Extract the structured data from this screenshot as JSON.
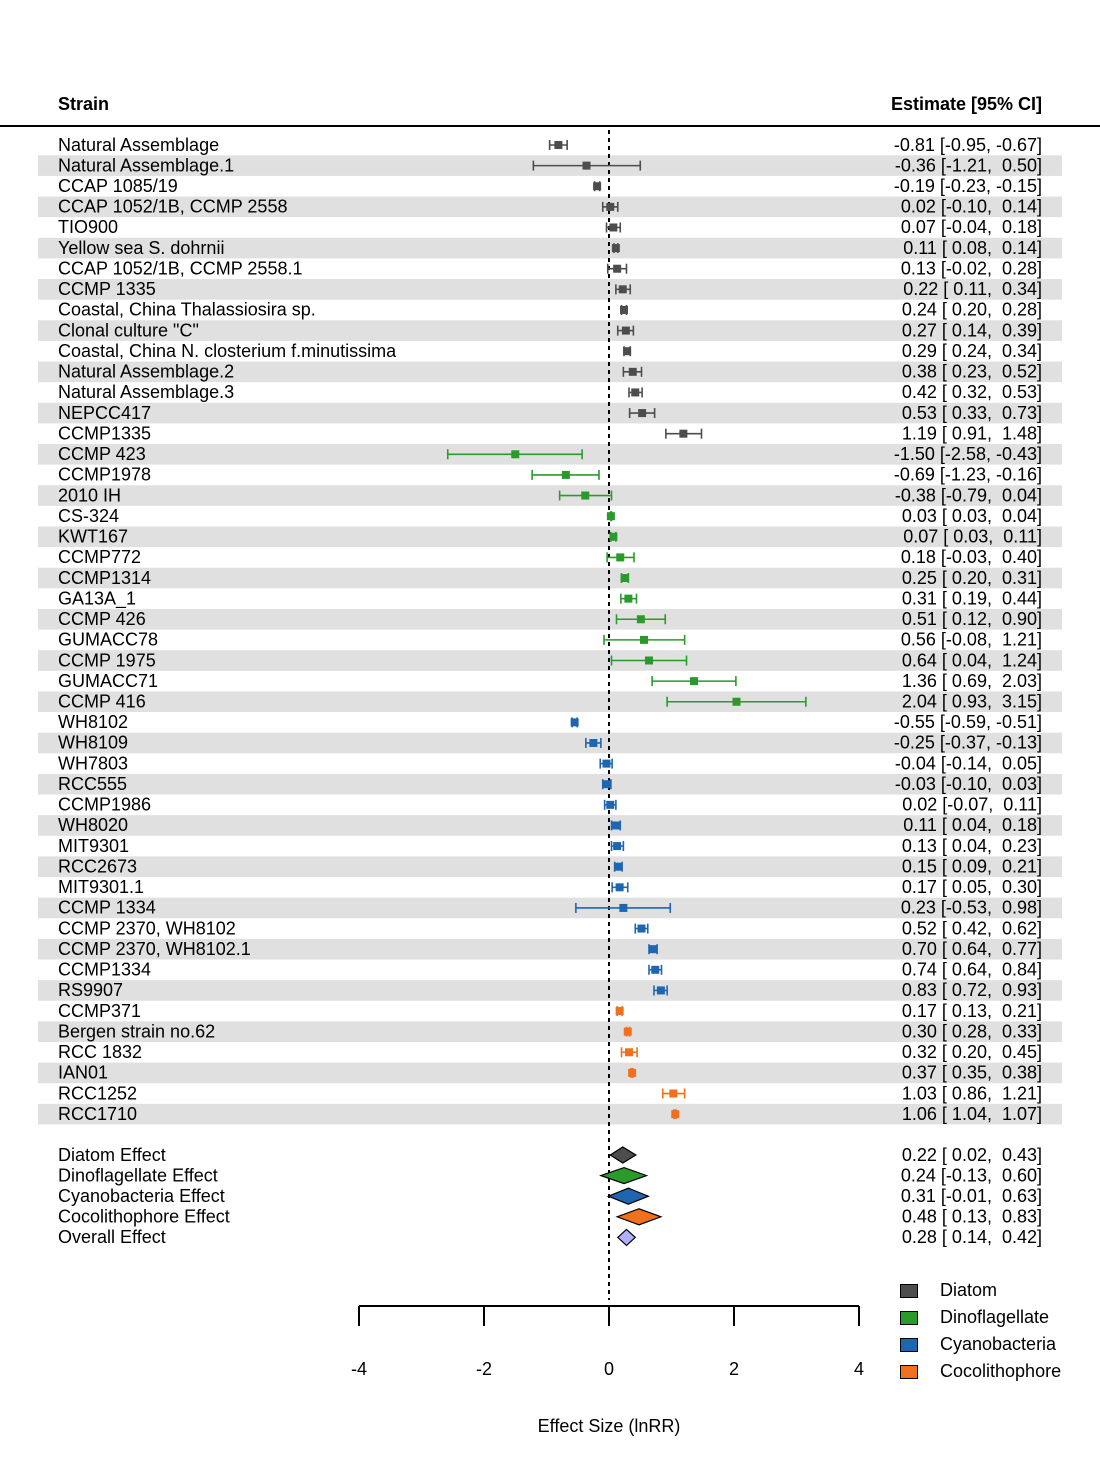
{
  "chart_data": {
    "type": "forest",
    "header_left": "Strain",
    "header_right": "Estimate [95% CI]",
    "xlabel": "Effect Size (lnRR)",
    "xlim": [
      -4,
      4
    ],
    "xticks": [
      -4,
      -2,
      0,
      2,
      4
    ],
    "reference_line": 0,
    "colors": {
      "Diatom": "#4d4d4d",
      "Dinoflagellate": "#2a9a2a",
      "Cyanobacteria": "#1f66b0",
      "Cocolithophore": "#f0701e",
      "Overall": "#b0b0ff"
    },
    "legend": [
      "Diatom",
      "Dinoflagellate",
      "Cyanobacteria",
      "Cocolithophore"
    ],
    "rows": [
      {
        "label": "Natural Assemblage",
        "group": "Diatom",
        "est": -0.81,
        "lo": -0.95,
        "hi": -0.67,
        "text": "-0.81 [-0.95, -0.67]"
      },
      {
        "label": "Natural Assemblage.1",
        "group": "Diatom",
        "est": -0.36,
        "lo": -1.21,
        "hi": 0.5,
        "text": "-0.36 [-1.21,  0.50]"
      },
      {
        "label": "CCAP 1085/19",
        "group": "Diatom",
        "est": -0.19,
        "lo": -0.23,
        "hi": -0.15,
        "text": "-0.19 [-0.23, -0.15]"
      },
      {
        "label": "CCAP 1052/1B, CCMP 2558",
        "group": "Diatom",
        "est": 0.02,
        "lo": -0.1,
        "hi": 0.14,
        "text": "0.02 [-0.10,  0.14]"
      },
      {
        "label": "TIO900",
        "group": "Diatom",
        "est": 0.07,
        "lo": -0.04,
        "hi": 0.18,
        "text": "0.07 [-0.04,  0.18]"
      },
      {
        "label": "Yellow sea S. dohrnii",
        "group": "Diatom",
        "est": 0.11,
        "lo": 0.08,
        "hi": 0.14,
        "text": "0.11 [ 0.08,  0.14]"
      },
      {
        "label": "CCAP 1052/1B, CCMP 2558.1",
        "group": "Diatom",
        "est": 0.13,
        "lo": -0.02,
        "hi": 0.28,
        "text": "0.13 [-0.02,  0.28]"
      },
      {
        "label": "CCMP 1335",
        "group": "Diatom",
        "est": 0.22,
        "lo": 0.11,
        "hi": 0.34,
        "text": "0.22 [ 0.11,  0.34]"
      },
      {
        "label": "Coastal, China Thalassiosira sp.",
        "group": "Diatom",
        "est": 0.24,
        "lo": 0.2,
        "hi": 0.28,
        "text": "0.24 [ 0.20,  0.28]"
      },
      {
        "label": "Clonal culture \"C\"",
        "group": "Diatom",
        "est": 0.27,
        "lo": 0.14,
        "hi": 0.39,
        "text": "0.27 [ 0.14,  0.39]"
      },
      {
        "label": "Coastal, China N. closterium f.minutissima",
        "group": "Diatom",
        "est": 0.29,
        "lo": 0.24,
        "hi": 0.34,
        "text": "0.29 [ 0.24,  0.34]"
      },
      {
        "label": "Natural Assemblage.2",
        "group": "Diatom",
        "est": 0.38,
        "lo": 0.23,
        "hi": 0.52,
        "text": "0.38 [ 0.23,  0.52]"
      },
      {
        "label": "Natural Assemblage.3",
        "group": "Diatom",
        "est": 0.42,
        "lo": 0.32,
        "hi": 0.53,
        "text": "0.42 [ 0.32,  0.53]"
      },
      {
        "label": "NEPCC417",
        "group": "Diatom",
        "est": 0.53,
        "lo": 0.33,
        "hi": 0.73,
        "text": "0.53 [ 0.33,  0.73]"
      },
      {
        "label": "CCMP1335",
        "group": "Diatom",
        "est": 1.19,
        "lo": 0.91,
        "hi": 1.48,
        "text": "1.19 [ 0.91,  1.48]"
      },
      {
        "label": "CCMP 423",
        "group": "Dinoflagellate",
        "est": -1.5,
        "lo": -2.58,
        "hi": -0.43,
        "text": "-1.50 [-2.58, -0.43]"
      },
      {
        "label": "CCMP1978",
        "group": "Dinoflagellate",
        "est": -0.69,
        "lo": -1.23,
        "hi": -0.16,
        "text": "-0.69 [-1.23, -0.16]"
      },
      {
        "label": "2010 IH",
        "group": "Dinoflagellate",
        "est": -0.38,
        "lo": -0.79,
        "hi": 0.04,
        "text": "-0.38 [-0.79,  0.04]"
      },
      {
        "label": "CS-324",
        "group": "Dinoflagellate",
        "est": 0.03,
        "lo": 0.03,
        "hi": 0.04,
        "text": "0.03 [ 0.03,  0.04]"
      },
      {
        "label": "KWT167",
        "group": "Dinoflagellate",
        "est": 0.07,
        "lo": 0.03,
        "hi": 0.11,
        "text": "0.07 [ 0.03,  0.11]"
      },
      {
        "label": "CCMP772",
        "group": "Dinoflagellate",
        "est": 0.18,
        "lo": -0.03,
        "hi": 0.4,
        "text": "0.18 [-0.03,  0.40]"
      },
      {
        "label": "CCMP1314",
        "group": "Dinoflagellate",
        "est": 0.25,
        "lo": 0.2,
        "hi": 0.31,
        "text": "0.25 [ 0.20,  0.31]"
      },
      {
        "label": "GA13A_1",
        "group": "Dinoflagellate",
        "est": 0.31,
        "lo": 0.19,
        "hi": 0.44,
        "text": "0.31 [ 0.19,  0.44]"
      },
      {
        "label": "CCMP 426",
        "group": "Dinoflagellate",
        "est": 0.51,
        "lo": 0.12,
        "hi": 0.9,
        "text": "0.51 [ 0.12,  0.90]"
      },
      {
        "label": "GUMACC78",
        "group": "Dinoflagellate",
        "est": 0.56,
        "lo": -0.08,
        "hi": 1.21,
        "text": "0.56 [-0.08,  1.21]"
      },
      {
        "label": "CCMP 1975",
        "group": "Dinoflagellate",
        "est": 0.64,
        "lo": 0.04,
        "hi": 1.24,
        "text": "0.64 [ 0.04,  1.24]"
      },
      {
        "label": "GUMACC71",
        "group": "Dinoflagellate",
        "est": 1.36,
        "lo": 0.69,
        "hi": 2.03,
        "text": "1.36 [ 0.69,  2.03]"
      },
      {
        "label": "CCMP 416",
        "group": "Dinoflagellate",
        "est": 2.04,
        "lo": 0.93,
        "hi": 3.15,
        "text": "2.04 [ 0.93,  3.15]"
      },
      {
        "label": "WH8102",
        "group": "Cyanobacteria",
        "est": -0.55,
        "lo": -0.59,
        "hi": -0.51,
        "text": "-0.55 [-0.59, -0.51]"
      },
      {
        "label": "WH8109",
        "group": "Cyanobacteria",
        "est": -0.25,
        "lo": -0.37,
        "hi": -0.13,
        "text": "-0.25 [-0.37, -0.13]"
      },
      {
        "label": "WH7803",
        "group": "Cyanobacteria",
        "est": -0.04,
        "lo": -0.14,
        "hi": 0.05,
        "text": "-0.04 [-0.14,  0.05]"
      },
      {
        "label": "RCC555",
        "group": "Cyanobacteria",
        "est": -0.03,
        "lo": -0.1,
        "hi": 0.03,
        "text": "-0.03 [-0.10,  0.03]"
      },
      {
        "label": "CCMP1986",
        "group": "Cyanobacteria",
        "est": 0.02,
        "lo": -0.07,
        "hi": 0.11,
        "text": "0.02 [-0.07,  0.11]"
      },
      {
        "label": "WH8020",
        "group": "Cyanobacteria",
        "est": 0.11,
        "lo": 0.04,
        "hi": 0.18,
        "text": "0.11 [ 0.04,  0.18]"
      },
      {
        "label": "MIT9301",
        "group": "Cyanobacteria",
        "est": 0.13,
        "lo": 0.04,
        "hi": 0.23,
        "text": "0.13 [ 0.04,  0.23]"
      },
      {
        "label": "RCC2673",
        "group": "Cyanobacteria",
        "est": 0.15,
        "lo": 0.09,
        "hi": 0.21,
        "text": "0.15 [ 0.09,  0.21]"
      },
      {
        "label": "MIT9301.1",
        "group": "Cyanobacteria",
        "est": 0.17,
        "lo": 0.05,
        "hi": 0.3,
        "text": "0.17 [ 0.05,  0.30]"
      },
      {
        "label": "CCMP 1334",
        "group": "Cyanobacteria",
        "est": 0.23,
        "lo": -0.53,
        "hi": 0.98,
        "text": "0.23 [-0.53,  0.98]"
      },
      {
        "label": "CCMP 2370, WH8102",
        "group": "Cyanobacteria",
        "est": 0.52,
        "lo": 0.42,
        "hi": 0.62,
        "text": "0.52 [ 0.42,  0.62]"
      },
      {
        "label": "CCMP 2370, WH8102.1",
        "group": "Cyanobacteria",
        "est": 0.7,
        "lo": 0.64,
        "hi": 0.77,
        "text": "0.70 [ 0.64,  0.77]"
      },
      {
        "label": "CCMP1334",
        "group": "Cyanobacteria",
        "est": 0.74,
        "lo": 0.64,
        "hi": 0.84,
        "text": "0.74 [ 0.64,  0.84]"
      },
      {
        "label": "RS9907",
        "group": "Cyanobacteria",
        "est": 0.83,
        "lo": 0.72,
        "hi": 0.93,
        "text": "0.83 [ 0.72,  0.93]"
      },
      {
        "label": "CCMP371",
        "group": "Cocolithophore",
        "est": 0.17,
        "lo": 0.13,
        "hi": 0.21,
        "text": "0.17 [ 0.13,  0.21]"
      },
      {
        "label": "Bergen strain no.62",
        "group": "Cocolithophore",
        "est": 0.3,
        "lo": 0.28,
        "hi": 0.33,
        "text": "0.30 [ 0.28,  0.33]"
      },
      {
        "label": "RCC 1832",
        "group": "Cocolithophore",
        "est": 0.32,
        "lo": 0.2,
        "hi": 0.45,
        "text": "0.32 [ 0.20,  0.45]"
      },
      {
        "label": "IAN01",
        "group": "Cocolithophore",
        "est": 0.37,
        "lo": 0.35,
        "hi": 0.38,
        "text": "0.37 [ 0.35,  0.38]"
      },
      {
        "label": "RCC1252",
        "group": "Cocolithophore",
        "est": 1.03,
        "lo": 0.86,
        "hi": 1.21,
        "text": "1.03 [ 0.86,  1.21]"
      },
      {
        "label": "RCC1710",
        "group": "Cocolithophore",
        "est": 1.06,
        "lo": 1.04,
        "hi": 1.07,
        "text": "1.06 [ 1.04,  1.07]"
      }
    ],
    "summaries": [
      {
        "label": "Diatom Effect",
        "group": "Diatom",
        "est": 0.22,
        "lo": 0.02,
        "hi": 0.43,
        "text": "0.22 [ 0.02,  0.43]"
      },
      {
        "label": "Dinoflagellate Effect",
        "group": "Dinoflagellate",
        "est": 0.24,
        "lo": -0.13,
        "hi": 0.6,
        "text": "0.24 [-0.13,  0.60]"
      },
      {
        "label": "Cyanobacteria Effect",
        "group": "Cyanobacteria",
        "est": 0.31,
        "lo": -0.01,
        "hi": 0.63,
        "text": "0.31 [-0.01,  0.63]"
      },
      {
        "label": "Cocolithophore Effect",
        "group": "Cocolithophore",
        "est": 0.48,
        "lo": 0.13,
        "hi": 0.83,
        "text": "0.48 [ 0.13,  0.83]"
      },
      {
        "label": "Overall Effect",
        "group": "Overall",
        "est": 0.28,
        "lo": 0.14,
        "hi": 0.42,
        "text": "0.28 [ 0.14,  0.42]"
      }
    ]
  }
}
